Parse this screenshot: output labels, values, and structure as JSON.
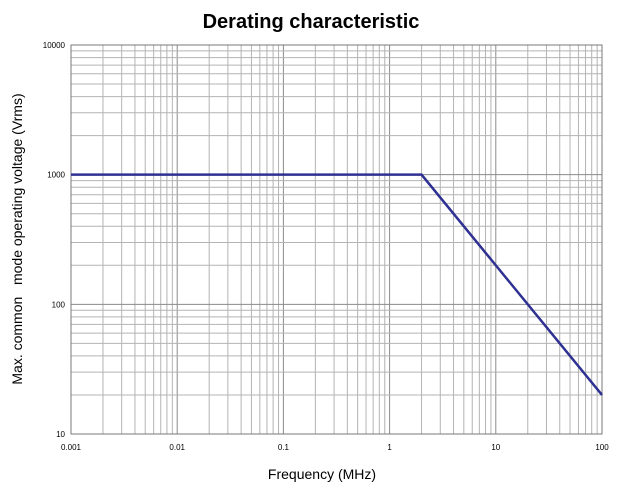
{
  "chart_data": {
    "type": "line",
    "title": "Derating characteristic",
    "xlabel": "Frequency (MHz)",
    "ylabel": "Max. common   mode operating voltage (Vrms)",
    "x_scale": "log",
    "y_scale": "log",
    "xlim": [
      0.001,
      100
    ],
    "ylim": [
      10,
      10000
    ],
    "x_ticks": [
      {
        "value": 0.001,
        "label": "0.001"
      },
      {
        "value": 0.01,
        "label": "0.01"
      },
      {
        "value": 0.1,
        "label": "0.1"
      },
      {
        "value": 1,
        "label": "1"
      },
      {
        "value": 10,
        "label": "10"
      },
      {
        "value": 100,
        "label": "100"
      }
    ],
    "y_ticks": [
      {
        "value": 10,
        "label": "10"
      },
      {
        "value": 100,
        "label": "100"
      },
      {
        "value": 1000,
        "label": "1000"
      },
      {
        "value": 10000,
        "label": "10000"
      }
    ],
    "grid": true,
    "series": [
      {
        "x": [
          0.001,
          2,
          100
        ],
        "y": [
          1000,
          1000,
          20
        ],
        "color": "#2f3192"
      }
    ]
  }
}
